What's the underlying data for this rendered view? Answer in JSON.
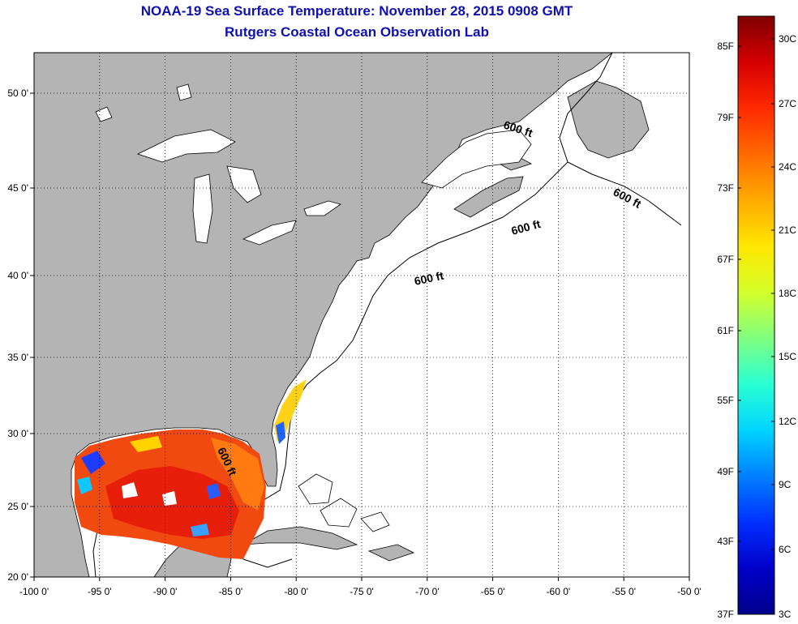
{
  "header": {
    "title": "NOAA-19 Sea Surface Temperature:  November 28, 2015 0908 GMT",
    "subtitle": "Rutgers Coastal Ocean Observation Lab"
  },
  "axes": {
    "lon_ticks": [
      "-100 0'",
      "-95 0'",
      "-90 0'",
      "-85 0'",
      "-80 0'",
      "-75 0'",
      "-70 0'",
      "-65 0'",
      "-60 0'",
      "-55 0'",
      "-50 0'"
    ],
    "lat_ticks": [
      "50 0'",
      "45 0'",
      "40 0'",
      "35 0'",
      "30 0'",
      "25 0'",
      "20 0'"
    ]
  },
  "contour_label": "600 ft",
  "colorbar": {
    "fahrenheit": [
      "85F",
      "79F",
      "73F",
      "67F",
      "61F",
      "55F",
      "49F",
      "43F",
      "37F"
    ],
    "celsius": [
      "30C",
      "27C",
      "24C",
      "21C",
      "18C",
      "15C",
      "12C",
      "9C",
      "6C",
      "3C"
    ],
    "colors": [
      "#7f0000",
      "#d40000",
      "#ff2a00",
      "#ff6a00",
      "#ffaa00",
      "#ffe600",
      "#d4ff2a",
      "#80ff80",
      "#2affd4",
      "#00d4ff",
      "#0080ff",
      "#0030ff",
      "#0000c8",
      "#00008a"
    ]
  },
  "colors": {
    "land": "#b4b4b4",
    "ocean": "#ffffff",
    "title": "#1010b0"
  }
}
